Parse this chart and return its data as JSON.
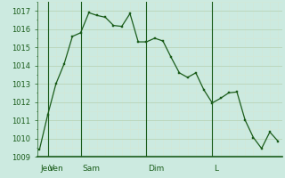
{
  "background_color": "#cceae0",
  "line_color": "#1a5c1a",
  "marker_color": "#1a5c1a",
  "axis_color": "#1a5c1a",
  "grid_major_color": "#b8d4b8",
  "grid_minor_color": "#d4e8d4",
  "ylim": [
    1009,
    1017.5
  ],
  "yticks": [
    1009,
    1010,
    1011,
    1012,
    1013,
    1014,
    1015,
    1016,
    1017
  ],
  "xlim": [
    -0.3,
    29.5
  ],
  "day_labels": [
    "Jeu",
    "Ven",
    "Sam",
    "Dim",
    "L"
  ],
  "vline_positions": [
    1,
    5,
    13,
    21
  ],
  "x_values": [
    0,
    1,
    2,
    3,
    4,
    5,
    6,
    7,
    8,
    9,
    10,
    11,
    12,
    13,
    14,
    15,
    16,
    17,
    18,
    19,
    20,
    21,
    22,
    23,
    24,
    25,
    26,
    27,
    28,
    29
  ],
  "y_values": [
    1009.4,
    1011.3,
    1013.0,
    1014.1,
    1015.6,
    1015.8,
    1016.9,
    1016.75,
    1016.65,
    1016.2,
    1016.15,
    1016.85,
    1015.3,
    1015.3,
    1015.5,
    1015.35,
    1014.45,
    1013.6,
    1013.35,
    1013.6,
    1012.65,
    1011.95,
    1012.2,
    1012.5,
    1012.55,
    1011.0,
    1010.05,
    1009.45,
    1010.35,
    1009.85
  ],
  "fontsize_yticks": 6.0,
  "fontsize_xticks": 6.5,
  "linewidth": 0.9,
  "markersize": 2.0,
  "vline_linewidth": 0.8
}
